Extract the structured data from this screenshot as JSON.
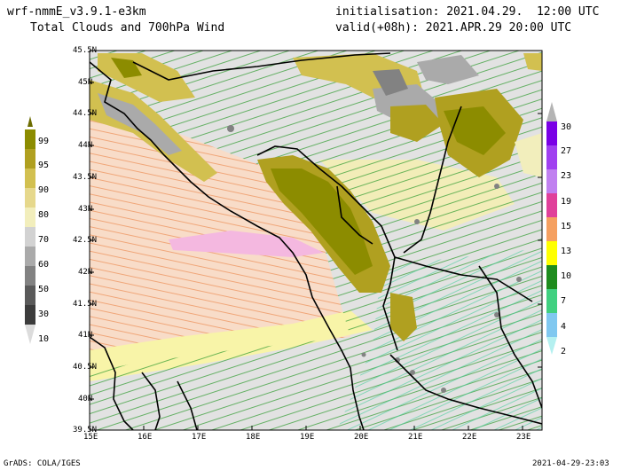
{
  "header": {
    "model": "wrf-nmmE_v3.9.1-e3km",
    "product": "Total Clouds and 700hPa Wind",
    "init": "initialisation: 2021.04.29.  12:00 UTC",
    "valid": "valid(+08h): 2021.APR.29 20:00 UTC"
  },
  "footer": {
    "credit": "GrADS: COLA/IGES",
    "timestamp": "2021-04-29-23:03"
  },
  "map": {
    "lat_labels": [
      "45.5N",
      "45N",
      "44.5N",
      "44N",
      "43.5N",
      "43N",
      "42.5N",
      "42N",
      "41.5N",
      "41N",
      "40.5N",
      "40N",
      "39.5N"
    ],
    "lon_labels": [
      "15E",
      "16E",
      "17E",
      "18E",
      "19E",
      "20E",
      "21E",
      "22E",
      "23E"
    ]
  },
  "cloud_colorbar": {
    "labels": [
      "99",
      "95",
      "90",
      "80",
      "70",
      "60",
      "50",
      "30",
      "10"
    ],
    "colors": [
      "#8c8c00",
      "#b0a020",
      "#d2c050",
      "#e6d88c",
      "#f2eebc",
      "#d2d2d2",
      "#aaaaaa",
      "#828282",
      "#5a5a5a"
    ]
  },
  "wind_colorbar": {
    "labels": [
      "30",
      "27",
      "23",
      "19",
      "15",
      "13",
      "10",
      "7",
      "4",
      "2"
    ],
    "colors": [
      "#7a00e6",
      "#a040f0",
      "#c080f0",
      "#e0409a",
      "#f5a060",
      "#ffff00",
      "#1e8c1e",
      "#40d080",
      "#80c8f0",
      "#b4f0f0"
    ]
  }
}
